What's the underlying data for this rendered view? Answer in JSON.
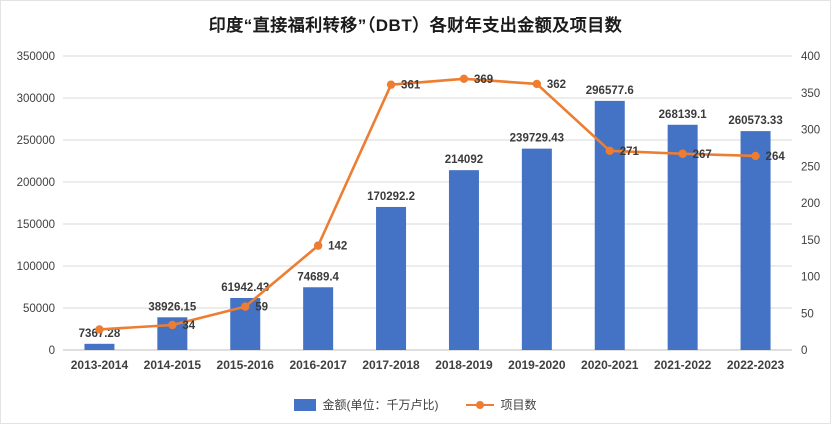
{
  "chart": {
    "title": "印度“直接福利转移”（DBT）各财年支出金额及项目数",
    "legend": {
      "bars": "金额(单位：千万卢比)",
      "line": "项目数"
    },
    "colors": {
      "bar": "#4472C4",
      "line": "#ED7D31",
      "grid": "#D9D9D9",
      "axis_line": "#BFBFBF",
      "axis_text": "#404040",
      "label_text": "#3b3b3b"
    }
  },
  "chart_data": {
    "type": "bar+line combo",
    "title": "印度“直接福利转移”（DBT）各财年支出金额及项目数",
    "categories": [
      "2013-2014",
      "2014-2015",
      "2015-2016",
      "2016-2017",
      "2017-2018",
      "2018-2019",
      "2019-2020",
      "2020-2021",
      "2021-2022",
      "2022-2023"
    ],
    "series": [
      {
        "name": "金额(单位：千万卢比)",
        "type": "bar",
        "axis": "left",
        "values": [
          7367.28,
          38926.15,
          61942.43,
          74689.4,
          170292.2,
          214092,
          239729.43,
          296577.6,
          268139.1,
          260573.33
        ],
        "labels": [
          "7367.28",
          "38926.15",
          "61942.43",
          "74689.4",
          "170292.2",
          "214092",
          "239729.43",
          "296577.6",
          "268139.1",
          "260573.33"
        ]
      },
      {
        "name": "项目数",
        "type": "line",
        "axis": "right",
        "values": [
          28,
          34,
          59,
          142,
          361,
          369,
          362,
          271,
          267,
          264
        ],
        "labels": [
          "",
          "34",
          "59",
          "142",
          "361",
          "369",
          "362",
          "271",
          "267",
          "264"
        ]
      }
    ],
    "left_axis": {
      "min": 0,
      "max": 350000,
      "step": 50000,
      "tick_labels": [
        "0",
        "50000",
        "100000",
        "150000",
        "200000",
        "250000",
        "300000",
        "350000"
      ]
    },
    "right_axis": {
      "min": 0,
      "max": 400,
      "step": 50,
      "tick_labels": [
        "0",
        "50",
        "100",
        "150",
        "200",
        "250",
        "300",
        "350",
        "400"
      ]
    },
    "grid": true,
    "legend_position": "bottom",
    "xlabel": "",
    "ylabel_left": "",
    "ylabel_right": ""
  }
}
